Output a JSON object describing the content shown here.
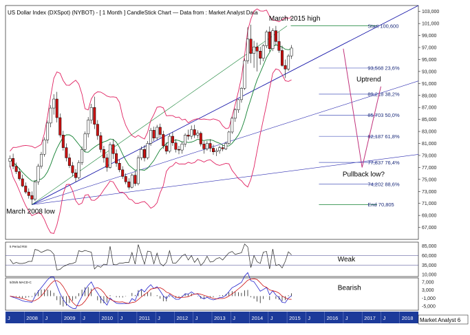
{
  "chart_data": [
    {
      "type": "candlestick",
      "title": "US Dollar Index (DXSpot) (NYBOT) -  [ 1 Month ] CandleStick Chart — Data from : Market Analyst Data",
      "ylim": [
        65,
        104
      ],
      "y_ticks": [
        "103,000",
        "101,000",
        "99,000",
        "97,000",
        "95,000",
        "93,000",
        "91,000",
        "89,000",
        "87,000",
        "85,000",
        "83,000",
        "81,000",
        "79,000",
        "77,000",
        "75,000",
        "73,000",
        "71,000",
        "69,000",
        "67,000"
      ],
      "x_ticks": [
        "J",
        "2008",
        "J",
        "2009",
        "J",
        "2010",
        "J",
        "2011",
        "J",
        "2012",
        "J",
        "2013",
        "J",
        "2014",
        "J",
        "2015",
        "J",
        "2016",
        "J",
        "2017",
        "J",
        "2018"
      ],
      "candles": [
        [
          78,
          79,
          77,
          78.5
        ],
        [
          78.5,
          79.3,
          76.7,
          77.2
        ],
        [
          77.2,
          77.8,
          75.9,
          76.3
        ],
        [
          76.3,
          76.9,
          74.8,
          75.1
        ],
        [
          75.1,
          75.8,
          73.7,
          73.9
        ],
        [
          73.9,
          74.5,
          72.6,
          72.9
        ],
        [
          72.9,
          73.5,
          71.8,
          72.3
        ],
        [
          72.3,
          73.0,
          70.8,
          71.7
        ],
        [
          71.7,
          74.9,
          71.4,
          74.6
        ],
        [
          74.6,
          77.6,
          74.1,
          77.2
        ],
        [
          77.2,
          79.6,
          76.8,
          79.2
        ],
        [
          79.2,
          82.0,
          78.8,
          81.6
        ],
        [
          81.6,
          84.8,
          81.0,
          84.4
        ],
        [
          84.4,
          87.4,
          83.7,
          86.9
        ],
        [
          86.9,
          89.2,
          85.8,
          88.4
        ],
        [
          88.4,
          89.6,
          84.5,
          85.3
        ],
        [
          85.3,
          86.0,
          82.0,
          82.4
        ],
        [
          82.4,
          83.1,
          79.8,
          80.3
        ],
        [
          80.3,
          81.0,
          78.0,
          78.6
        ],
        [
          78.6,
          79.3,
          76.9,
          77.3
        ],
        [
          77.3,
          77.9,
          75.5,
          76.1
        ],
        [
          76.1,
          76.7,
          74.6,
          75.3
        ],
        [
          75.3,
          78.2,
          75.0,
          77.8
        ],
        [
          77.8,
          80.5,
          77.4,
          80.0
        ],
        [
          80.0,
          83.0,
          79.6,
          82.6
        ],
        [
          82.6,
          85.4,
          82.0,
          84.9
        ],
        [
          84.9,
          87.6,
          84.3,
          87.0
        ],
        [
          87.0,
          88.8,
          83.4,
          84.2
        ],
        [
          84.2,
          84.9,
          81.6,
          82.3
        ],
        [
          82.3,
          82.9,
          79.5,
          80.0
        ],
        [
          80.0,
          80.6,
          77.8,
          78.6
        ],
        [
          78.6,
          79.3,
          76.3,
          77.0
        ],
        [
          77.0,
          81.2,
          76.8,
          80.8
        ],
        [
          80.8,
          81.7,
          78.4,
          79.3
        ],
        [
          79.3,
          80.0,
          77.1,
          77.7
        ],
        [
          77.7,
          78.3,
          76.2,
          76.6
        ],
        [
          76.6,
          77.2,
          75.1,
          75.5
        ],
        [
          75.5,
          76.0,
          74.2,
          74.6
        ],
        [
          74.6,
          75.2,
          73.3,
          73.7
        ],
        [
          73.7,
          76.0,
          73.5,
          75.7
        ],
        [
          75.7,
          76.4,
          73.9,
          74.3
        ],
        [
          74.3,
          79.0,
          74.0,
          78.6
        ],
        [
          78.6,
          80.5,
          78.2,
          80.0
        ],
        [
          80.0,
          80.7,
          78.0,
          78.6
        ],
        [
          78.6,
          81.4,
          78.3,
          81.0
        ],
        [
          81.0,
          83.6,
          80.6,
          83.2
        ],
        [
          83.2,
          83.8,
          81.4,
          81.9
        ],
        [
          81.9,
          84.1,
          81.6,
          83.7
        ],
        [
          83.7,
          84.3,
          81.9,
          82.5
        ],
        [
          82.5,
          83.1,
          80.1,
          80.6
        ],
        [
          80.6,
          81.2,
          79.2,
          79.7
        ],
        [
          79.7,
          82.6,
          79.4,
          82.2
        ],
        [
          82.2,
          82.9,
          80.6,
          81.1
        ],
        [
          81.1,
          81.7,
          79.5,
          80.0
        ],
        [
          80.0,
          80.6,
          79.2,
          79.9
        ],
        [
          79.9,
          81.3,
          79.3,
          80.9
        ],
        [
          80.9,
          82.7,
          80.4,
          82.4
        ],
        [
          82.4,
          83.3,
          81.6,
          82.2
        ],
        [
          82.2,
          84.0,
          81.7,
          83.3
        ],
        [
          83.3,
          84.1,
          81.9,
          82.4
        ],
        [
          82.4,
          83.2,
          81.9,
          82.7
        ],
        [
          82.7,
          83.0,
          80.5,
          80.9
        ],
        [
          80.9,
          81.4,
          79.3,
          80.1
        ],
        [
          80.1,
          81.4,
          79.8,
          81.0
        ],
        [
          81.0,
          81.7,
          79.6,
          80.2
        ],
        [
          80.2,
          80.8,
          79.1,
          79.6
        ],
        [
          79.6,
          80.2,
          78.9,
          79.8
        ],
        [
          79.8,
          80.6,
          79.3,
          80.3
        ],
        [
          80.3,
          80.8,
          79.7,
          80.1
        ],
        [
          80.1,
          81.3,
          79.9,
          81.0
        ],
        [
          81.0,
          83.1,
          80.8,
          82.9
        ],
        [
          82.9,
          85.5,
          82.6,
          85.2
        ],
        [
          85.2,
          86.9,
          84.6,
          86.6
        ],
        [
          86.6,
          88.4,
          86.1,
          88.3
        ],
        [
          88.3,
          90.4,
          87.8,
          90.2
        ],
        [
          90.2,
          95.2,
          89.9,
          94.8
        ],
        [
          94.8,
          100.4,
          94.3,
          98.4
        ],
        [
          98.4,
          100.8,
          94.4,
          96.0
        ],
        [
          96.0,
          98.1,
          93.6,
          97.1
        ],
        [
          97.1,
          97.8,
          93.0,
          96.4
        ],
        [
          96.4,
          97.1,
          94.1,
          95.2
        ],
        [
          95.2,
          97.6,
          94.7,
          97.3
        ],
        [
          97.3,
          99.9,
          96.9,
          99.6
        ],
        [
          99.6,
          100.5,
          96.3,
          96.8
        ],
        [
          96.8,
          100.2,
          96.4,
          99.8
        ],
        [
          99.8,
          100.6,
          97.3,
          98.0
        ],
        [
          98.0,
          99.6,
          96.1,
          96.5
        ],
        [
          96.5,
          97.3,
          93.8,
          94.0
        ],
        [
          94.0,
          95.0,
          91.9,
          93.4
        ],
        [
          93.4,
          95.9,
          93.1,
          95.6
        ],
        [
          95.6,
          97.4,
          95.1,
          96.9
        ]
      ],
      "fib_levels": [
        {
          "label": "Start 100,600",
          "value": 100.6
        },
        {
          "label": "93,568 23,6%",
          "value": 93.568
        },
        {
          "label": "89,218 38,2%",
          "value": 89.218
        },
        {
          "label": "85,703 50,0%",
          "value": 85.703
        },
        {
          "label": "82,187 61,8%",
          "value": 82.187
        },
        {
          "label": "77,837 76,4%",
          "value": 77.837
        },
        {
          "label": "74,202 88,6%",
          "value": 74.202
        },
        {
          "label": "End 70,805",
          "value": 70.805
        }
      ],
      "annotations": [
        "March 2015 high",
        "Uptrend",
        "Pullback low?",
        "March 2008 low"
      ],
      "indicators": [
        "Bollinger Bands (red)",
        "Moving average (green)",
        "Gann fan lines (blue)"
      ],
      "projection_path": [
        [
          2016.5,
          96.8
        ],
        [
          2017.0,
          77.0
        ],
        [
          2017.5,
          90.5
        ]
      ]
    },
    {
      "type": "line",
      "title": "5 Period RSI",
      "ylim": [
        5,
        95
      ],
      "y_ticks": [
        "85,000",
        "60,000",
        "35,000",
        "10,000"
      ],
      "annotation": "Weak"
    },
    {
      "type": "line",
      "title": "5/25/5 MACD-C",
      "y_ticks": [
        "7,000",
        "3,000",
        "-1,000",
        "-5,000"
      ],
      "annotation": "Bearish"
    }
  ],
  "footer": "Market Analyst 6",
  "colors": {
    "candle_up": "#ffffff",
    "candle_down": "#cc1111",
    "bollinger": "#e02060",
    "moving_average": "#0f7f2f",
    "fan": "#2a2ab0",
    "fib_line": "#4855bb",
    "projection": "#c0307a",
    "macd": "#2222cc",
    "macd_signal": "#cc1111",
    "bottom_bar": "#1c3a9a"
  }
}
